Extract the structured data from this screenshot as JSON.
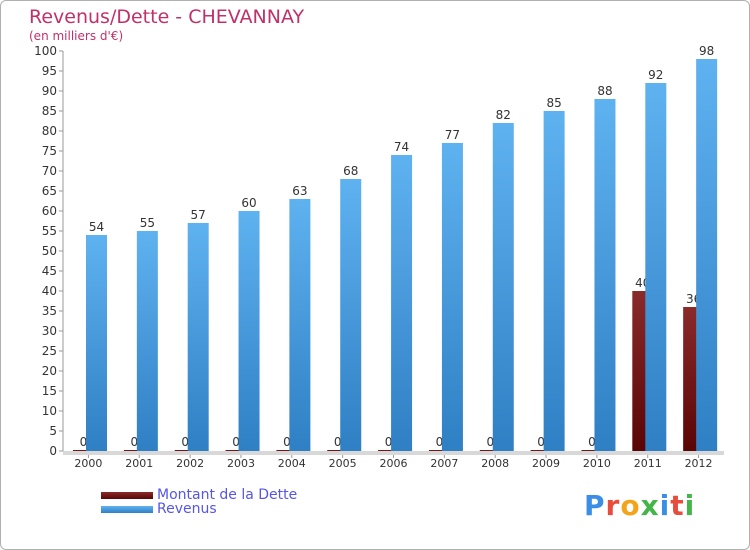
{
  "title": "Revenus/Dette - CHEVANNAY",
  "subtitle": "(en milliers d'€)",
  "logo_text": "Proxiti",
  "colors": {
    "dette": "#7a1a1a",
    "revenus": "#4fa6e8",
    "title": "#c0306a",
    "legend_text": "#5555e8"
  },
  "chart_data": {
    "type": "bar",
    "categories": [
      "2000",
      "2001",
      "2002",
      "2003",
      "2004",
      "2005",
      "2006",
      "2007",
      "2008",
      "2009",
      "2010",
      "2011",
      "2012"
    ],
    "series": [
      {
        "name": "Montant de la Dette",
        "values": [
          0,
          0,
          0,
          0,
          0,
          0,
          0,
          0,
          0,
          0,
          0,
          40,
          36
        ]
      },
      {
        "name": "Revenus",
        "values": [
          54,
          55,
          57,
          60,
          63,
          68,
          74,
          77,
          82,
          85,
          88,
          92,
          98
        ]
      }
    ],
    "yticks": [
      0,
      5,
      10,
      15,
      20,
      25,
      30,
      35,
      40,
      45,
      50,
      55,
      60,
      65,
      70,
      75,
      80,
      85,
      90,
      95,
      100
    ],
    "ylim": [
      0,
      100
    ],
    "grid": false,
    "legend_position": "bottom-left"
  }
}
